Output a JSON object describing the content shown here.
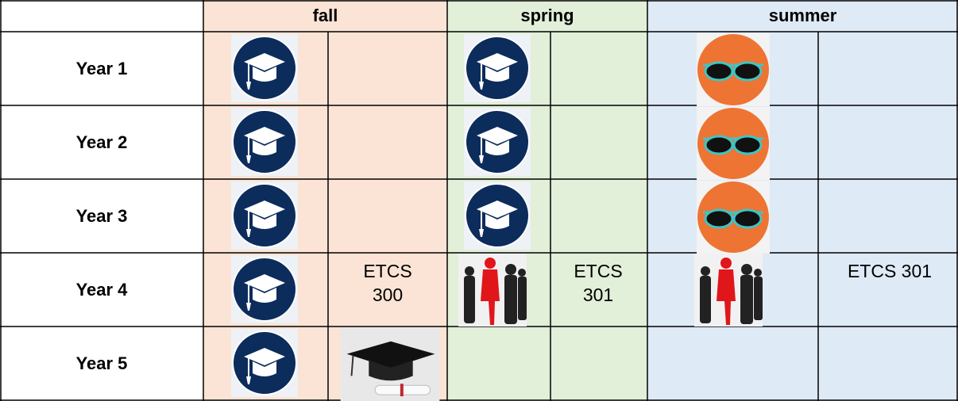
{
  "table": {
    "headers": [
      "fall",
      "spring",
      "summer"
    ],
    "rows": [
      {
        "label": "Year 1"
      },
      {
        "label": "Year 2"
      },
      {
        "label": "Year 3"
      },
      {
        "label": "Year 4",
        "fall": "ETCS 300",
        "spring": "ETCS 301",
        "summer": "ETCS 301"
      },
      {
        "label": "Year 5"
      }
    ]
  }
}
